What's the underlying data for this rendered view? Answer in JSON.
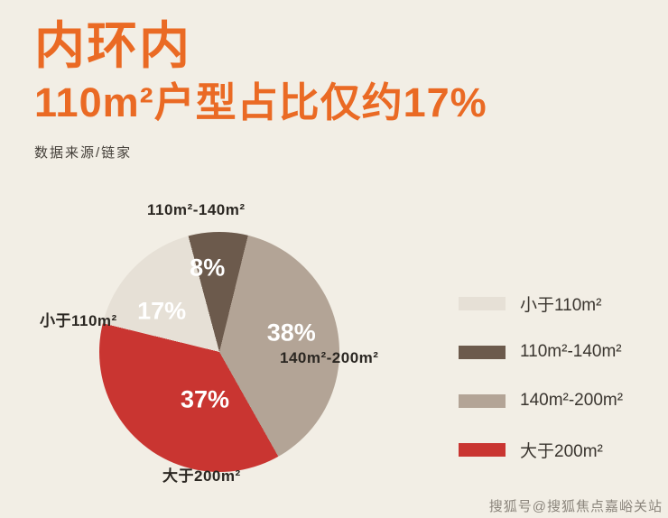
{
  "page": {
    "background": "#f2eee5",
    "accent": "#ea6a24"
  },
  "header": {
    "title_line1": "内环内",
    "title_line2": "110m²户型占比仅约17%",
    "source": "数据来源/链家"
  },
  "chart_data": {
    "type": "pie",
    "title": "内环内 110m²户型占比仅约17%",
    "source": "数据来源/链家",
    "legend_position": "right",
    "start_angle": -15,
    "draw_order": [
      1,
      2,
      3,
      0
    ],
    "slices": [
      {
        "label": "小于110m²",
        "value": 17,
        "color": "#e6e0d6"
      },
      {
        "label": "110m²-140m²",
        "value": 8,
        "color": "#6c5a4c"
      },
      {
        "label": "140m²-200m²",
        "value": 38,
        "color": "#b3a496"
      },
      {
        "label": "大于200m²",
        "value": 37,
        "color": "#c93531"
      }
    ]
  },
  "watermark": "搜狐号@搜狐焦点嘉峪关站"
}
